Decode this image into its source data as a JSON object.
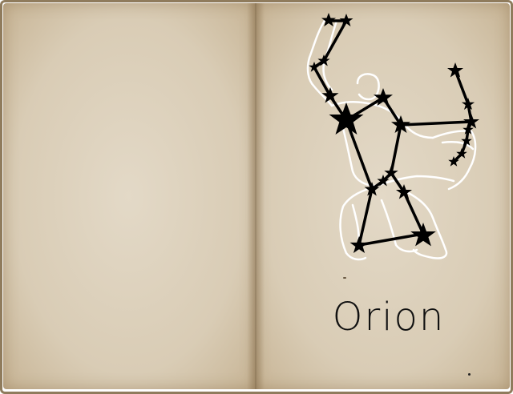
{
  "caption": "Orion",
  "colors": {
    "paper": "#ddd1bc",
    "ink": "#111111",
    "outline": "#ffffff"
  }
}
